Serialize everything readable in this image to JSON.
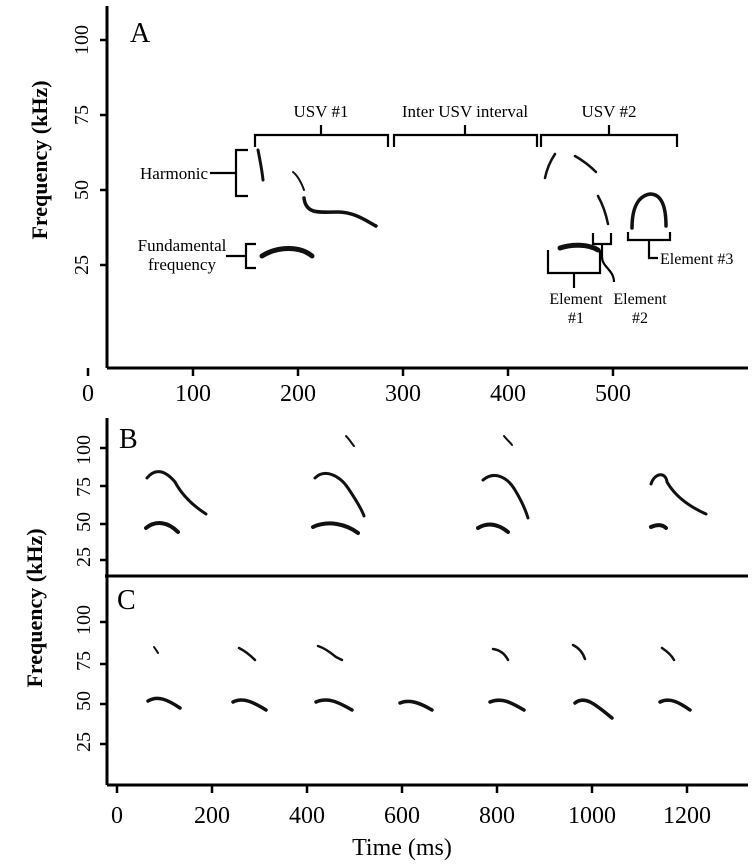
{
  "panel_a": {
    "label": "A",
    "ylabel": "Frequency (kHz)",
    "y_ticks": [
      "25",
      "50",
      "75",
      "100"
    ],
    "x_ticks": [
      "0",
      "100",
      "200",
      "300",
      "400",
      "500",
      "600"
    ],
    "annotations": {
      "usv1": "USV #1",
      "inter": "Inter USV interval",
      "usv2": "USV #2",
      "harmonic": "Harmonic",
      "fundamental_line1": "Fundamental",
      "fundamental_line2": "frequency",
      "element1_line1": "Element",
      "element1_line2": "#1",
      "element2_line1": "Element",
      "element2_line2": "#2",
      "element3": "Element #3"
    }
  },
  "panel_b": {
    "label": "B",
    "y_ticks": [
      "25",
      "50",
      "75",
      "100"
    ]
  },
  "panel_c": {
    "label": "C",
    "y_ticks": [
      "25",
      "50",
      "75",
      "100"
    ],
    "x_ticks": [
      "0",
      "200",
      "400",
      "600",
      "800",
      "1000",
      "1200"
    ]
  },
  "shared": {
    "ylabel": "Frequency (kHz)",
    "xlabel": "Time (ms)"
  }
}
